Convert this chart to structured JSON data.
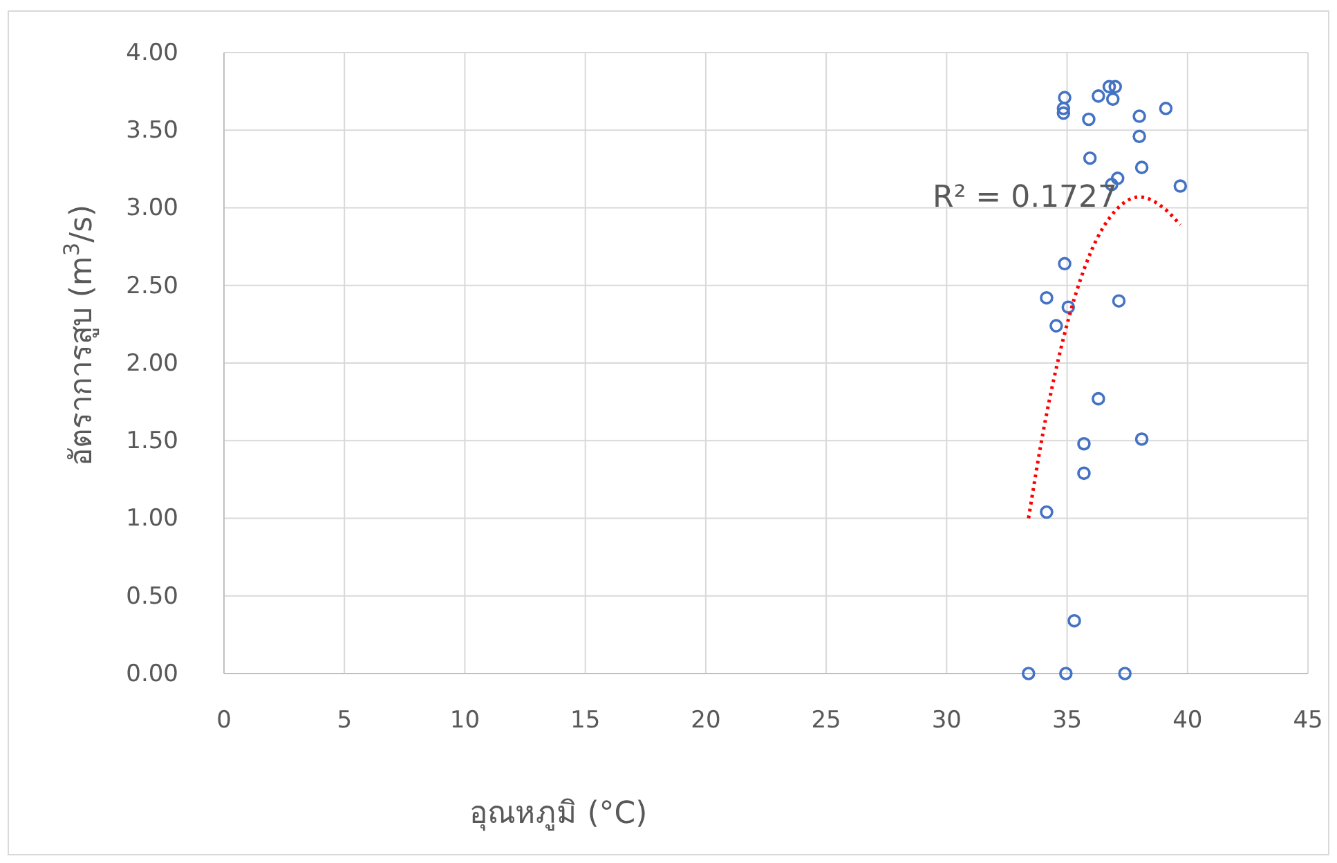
{
  "chart_data": {
    "type": "scatter",
    "xlabel": "อุณหภูมิ (°C)",
    "ylabel": "อัตราการสูบ (m$^{3}$/s)",
    "xlim": [
      0,
      45
    ],
    "xticks": [
      0,
      5,
      10,
      15,
      20,
      25,
      30,
      35,
      40,
      45
    ],
    "ylim": [
      0,
      4
    ],
    "yticks": [
      {
        "value": 0,
        "label": "0.00"
      },
      {
        "value": 0.5,
        "label": "0.50"
      },
      {
        "value": 1,
        "label": "1.00"
      },
      {
        "value": 1.5,
        "label": "1.50"
      },
      {
        "value": 2,
        "label": "2.00"
      },
      {
        "value": 2.5,
        "label": "2.50"
      },
      {
        "value": 3,
        "label": "3.00"
      },
      {
        "value": 3.5,
        "label": "3.50"
      },
      {
        "value": 4,
        "label": "4.00"
      }
    ],
    "grid": true,
    "marker": "circle",
    "series": [
      {
        "color": "#4472c4",
        "x": [
          34.9,
          34.85,
          34.85,
          35.9,
          36.3,
          36.75,
          37.0,
          36.9,
          38.0,
          39.1,
          38.0,
          35.95,
          38.1,
          37.1,
          36.85,
          39.7,
          34.9,
          34.15,
          35.05,
          37.15,
          34.55,
          36.3,
          35.7,
          38.1,
          35.7,
          34.15,
          35.3,
          33.4,
          34.95,
          37.4
        ],
        "values": [
          3.71,
          3.64,
          3.61,
          3.57,
          3.72,
          3.78,
          3.78,
          3.7,
          3.59,
          3.64,
          3.46,
          3.32,
          3.26,
          3.19,
          3.15,
          3.14,
          2.64,
          2.42,
          2.36,
          2.4,
          2.24,
          1.77,
          1.48,
          1.51,
          1.29,
          1.04,
          0.34,
          0,
          0,
          0
        ]
      },
      {
        "type": "line",
        "color": "#ff0000",
        "line_style": "dotted",
        "marker": "none",
        "x": [
          33.4,
          34,
          35,
          36,
          37,
          38,
          39,
          39.7
        ],
        "values": [
          1.0,
          1.55,
          2.25,
          2.72,
          2.98,
          3.07,
          3.0,
          2.89
        ]
      }
    ],
    "annotations": [
      "R² = 0.1727"
    ]
  }
}
